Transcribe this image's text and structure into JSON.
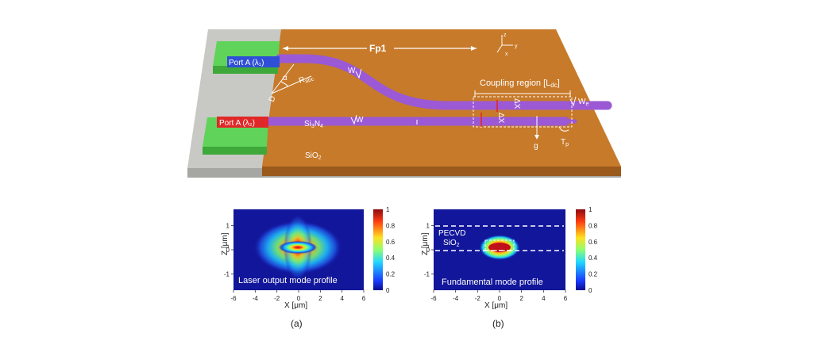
{
  "colors": {
    "chip": "#c77a2a",
    "chip_side": "#9a5a1c",
    "substrate": "#c8c8c4",
    "substrate_side": "#a6a6a2",
    "waveguide": "#9b59d6",
    "pad": "#5fd35a",
    "port1_bg": "#2f4fd6",
    "port2_bg": "#e02828",
    "plot_bg": "#12169a"
  },
  "diagram": {
    "port1_label": "Port A (λ₁)",
    "port2_label": "Port A (λ₂)",
    "fp1_label": "Fp1",
    "coupling_label": "Coupling region [L",
    "coupling_sub": "dc",
    "coupling_end": "]",
    "alpha_label": "α",
    "d_label": "D",
    "r_label": "R",
    "r_sub": "abc",
    "w_label_top": "W",
    "w_label_bottom": "W",
    "we_label": "W",
    "we_sub": "e",
    "g_label": "g",
    "tp_label": "T",
    "tp_sub": "p",
    "dx_label_top": "ΔX",
    "dx_label_bottom": "ΔX",
    "sin_label": "Si",
    "sin_sub3": "3",
    "sin_mid": "N",
    "sin_sub4": "4",
    "sio2_label": "SiO",
    "sio2_sub": "2",
    "axis_z": "z",
    "axis_y": "y",
    "axis_x": "x"
  },
  "plot_a": {
    "caption": "(a)",
    "overlay_text": "Laser output mode profile",
    "xlabel": "X [μm]",
    "ylabel": "Z [μm]",
    "xticks": [
      "-6",
      "-4",
      "-2",
      "0",
      "2",
      "4",
      "6"
    ],
    "yticks": [
      "1",
      "0",
      "-1"
    ],
    "cbar_ticks": [
      "1",
      "0.8",
      "0.6",
      "0.4",
      "0.2",
      "0"
    ]
  },
  "plot_b": {
    "caption": "(b)",
    "overlay_text": "Fundamental mode profile",
    "pecvd_label": "PECVD",
    "sio2_label": "SiO",
    "sio2_sub": "2",
    "xlabel": "X [μm]",
    "ylabel": "Z [μm]",
    "xticks": [
      "-6",
      "-4",
      "-2",
      "0",
      "2",
      "4",
      "6"
    ],
    "yticks": [
      "1",
      "0",
      "-1"
    ],
    "cbar_ticks": [
      "1",
      "0.8",
      "0.6",
      "0.4",
      "0.2",
      "0"
    ]
  }
}
